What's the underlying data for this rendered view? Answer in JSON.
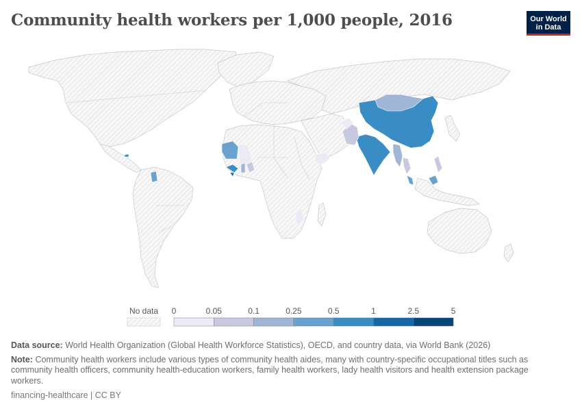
{
  "header": {
    "title": "Community health workers per 1,000 people, 2016",
    "logo_line1": "Our World",
    "logo_line2": "in Data"
  },
  "legend": {
    "no_data_label": "No data",
    "ticks": [
      "0",
      "0.05",
      "0.1",
      "0.25",
      "0.5",
      "1",
      "2.5",
      "5"
    ],
    "colors": [
      "#eceaf4",
      "#c6c9e0",
      "#9fb6d6",
      "#6aa2cf",
      "#3a8cc4",
      "#1467a6",
      "#08457a"
    ]
  },
  "footer": {
    "source_label": "Data source:",
    "source_text": "World Health Organization (Global Health Workforce Statistics), OECD, and country data, via World Bank (2026)",
    "note_label": "Note:",
    "note_text": "Community health workers include various types of community health aides, many with country-specific occupational titles such as community health officers, community health-education workers, family health workers, lady health visitors and health extension package workers.",
    "credit": "financing-healthcare | CC BY"
  }
}
